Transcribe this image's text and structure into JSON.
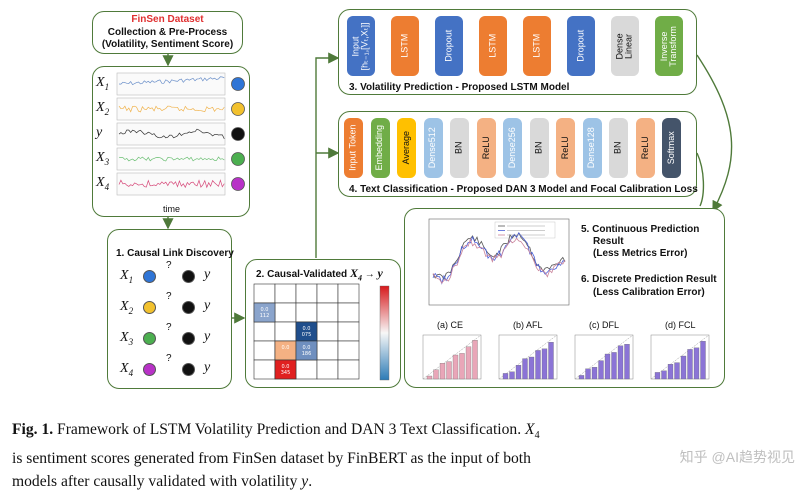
{
  "colors": {
    "green_border": "#4f7a3a",
    "blue": "#4472c4",
    "orange": "#ed7d31",
    "green": "#70ad47",
    "gray": "#d9d9d9",
    "lightblue": "#9dc3e6",
    "dark": "#44546a"
  },
  "dataset": {
    "title": "FinSen Dataset",
    "line1": "Collection & Pre-Process",
    "line2": "(Volatility, Sentiment Score)"
  },
  "timeseries": {
    "vars": [
      "X1",
      "X2",
      "y",
      "X3",
      "X4"
    ],
    "var_colors": [
      "#2f75d6",
      "#f2c12e",
      "#111111",
      "#4caf50",
      "#b832c7"
    ],
    "time_label": "time"
  },
  "causal": {
    "title": "1. Causal Link Discovery",
    "rows": [
      "X1",
      "X2",
      "X3",
      "X4"
    ],
    "question": "?",
    "target": "y"
  },
  "validated": {
    "title_prefix": "2. Causal-Validated ",
    "title_var": "X4",
    "title_arrow": " → ",
    "title_y": "y",
    "cells": [
      {
        "row": 1,
        "col": 0,
        "v1": "0.0",
        "v2": "112",
        "color": "#8aa4cc"
      },
      {
        "row": 2,
        "col": 2,
        "v1": "0.0",
        "v2": "075",
        "color": "#1f4e8c"
      },
      {
        "row": 3,
        "col": 1,
        "v1": "0.0",
        "v2": "",
        "color": "#f4b183"
      },
      {
        "row": 3,
        "col": 2,
        "v1": "0.0",
        "v2": "186",
        "color": "#6f8fbf"
      },
      {
        "row": 4,
        "col": 1,
        "v1": "0.0",
        "v2": "345",
        "color": "#e02020"
      }
    ]
  },
  "lstm": {
    "title": "3. Volatility Prediction - Proposed LSTM Model",
    "blocks": [
      {
        "label": "Input\n[h_{t-1}, [V_t, X_t]]",
        "color": "#4472c4",
        "text": "#ffffff"
      },
      {
        "label": "LSTM",
        "color": "#ed7d31",
        "text": "#ffffff"
      },
      {
        "label": "Dropout",
        "color": "#4472c4",
        "text": "#ffffff"
      },
      {
        "label": "LSTM",
        "color": "#ed7d31",
        "text": "#ffffff"
      },
      {
        "label": "LSTM",
        "color": "#ed7d31",
        "text": "#ffffff"
      },
      {
        "label": "Dropout",
        "color": "#4472c4",
        "text": "#ffffff"
      },
      {
        "label": "Dense\nLinear",
        "color": "#d9d9d9",
        "text": "#111111"
      },
      {
        "label": "Inverse\nTransform",
        "color": "#70ad47",
        "text": "#ffffff"
      }
    ]
  },
  "dan": {
    "title": "4. Text Classification -  Proposed DAN 3 Model and Focal Calibration Loss",
    "blocks": [
      {
        "label": "Input Token",
        "color": "#ed7d31",
        "text": "#ffffff"
      },
      {
        "label": "Embedding",
        "color": "#70ad47",
        "text": "#ffffff"
      },
      {
        "label": "Average",
        "color": "#ffc000",
        "text": "#111111"
      },
      {
        "label": "Dense512",
        "color": "#9dc3e6",
        "text": "#ffffff"
      },
      {
        "label": "BN",
        "color": "#d9d9d9",
        "text": "#111111"
      },
      {
        "label": "ReLU",
        "color": "#f4b183",
        "text": "#111111"
      },
      {
        "label": "Dense256",
        "color": "#9dc3e6",
        "text": "#ffffff"
      },
      {
        "label": "BN",
        "color": "#d9d9d9",
        "text": "#111111"
      },
      {
        "label": "ReLU",
        "color": "#f4b183",
        "text": "#111111"
      },
      {
        "label": "Dense128",
        "color": "#9dc3e6",
        "text": "#ffffff"
      },
      {
        "label": "BN",
        "color": "#d9d9d9",
        "text": "#111111"
      },
      {
        "label": "ReLU",
        "color": "#f4b183",
        "text": "#111111"
      },
      {
        "label": "Softmax",
        "color": "#44546a",
        "text": "#ffffff"
      }
    ]
  },
  "results": {
    "r5a": "5. Continuous Prediction",
    "r5b": "Result",
    "r5c": "(Less Metrics Error)",
    "r6a": "6. Discrete Prediction Result",
    "r6b": "(Less Calibration Error)",
    "minis": [
      "(a) CE",
      "(b) AFL",
      "(c) DFL",
      "(d) FCL"
    ]
  },
  "caption": {
    "fig": "Fig. 1.",
    "text1": " Framework of LSTM Volatility Prediction and DAN 3 Text Classification. ",
    "x4": "X",
    "x4sub": "4",
    "text2": "is sentiment scores generated from FinSen dataset by FinBERT as the input of both",
    "text3": "models after causally validated with volatility ",
    "y": "y",
    "end": "."
  },
  "watermark": "知乎 @AI趋势视见"
}
